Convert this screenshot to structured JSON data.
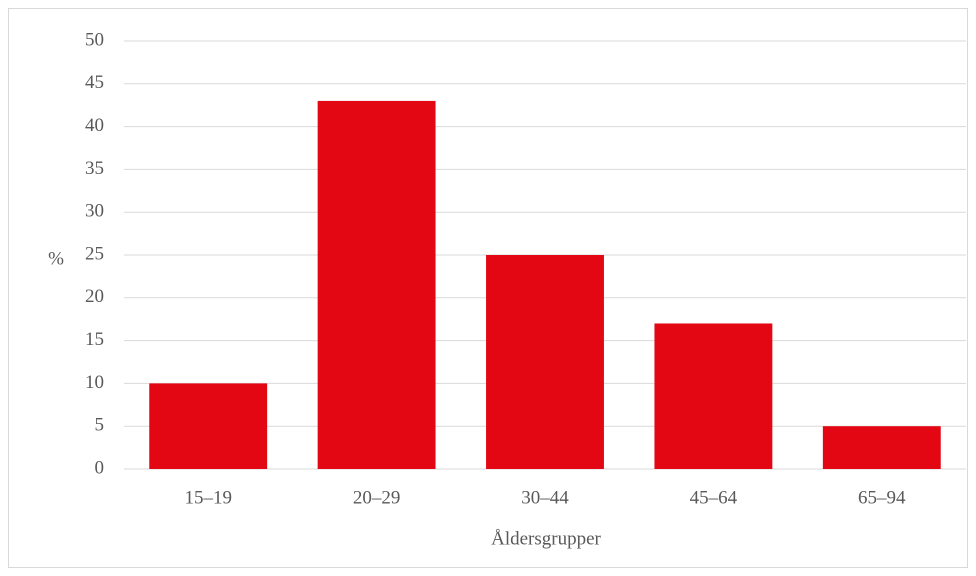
{
  "chart_data": {
    "type": "bar",
    "x_label": "Åldersgrupper",
    "y_label": "%",
    "categories": [
      "15–19",
      "20–29",
      "30–44",
      "45–64",
      "65–94"
    ],
    "values": [
      10,
      43,
      25,
      17,
      5
    ],
    "color": "#e30613",
    "ylim": [
      0,
      50
    ],
    "yticks": [
      0,
      5,
      10,
      15,
      20,
      25,
      30,
      35,
      40,
      45,
      50
    ],
    "grid": true
  }
}
